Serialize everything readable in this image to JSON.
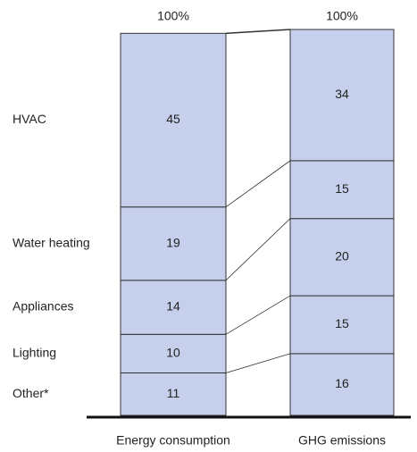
{
  "chart_data": {
    "type": "stacked_bar",
    "categories": [
      "Energy consumption",
      "GHG emissions"
    ],
    "total_labels": [
      "100%",
      "100%"
    ],
    "series": [
      {
        "name": "Other*",
        "color": "#c6d0ec",
        "values": [
          11,
          16
        ]
      },
      {
        "name": "Lighting",
        "color": "#c6d0ec",
        "values": [
          10,
          15
        ]
      },
      {
        "name": "Appliances",
        "color": "#c6d0ec",
        "values": [
          14,
          20
        ]
      },
      {
        "name": "Water heating",
        "color": "#c6d0ec",
        "values": [
          19,
          15
        ]
      },
      {
        "name": "HVAC",
        "color": "#c6d0ec",
        "values": [
          45,
          34
        ]
      }
    ],
    "ylim": [
      0,
      100
    ]
  }
}
